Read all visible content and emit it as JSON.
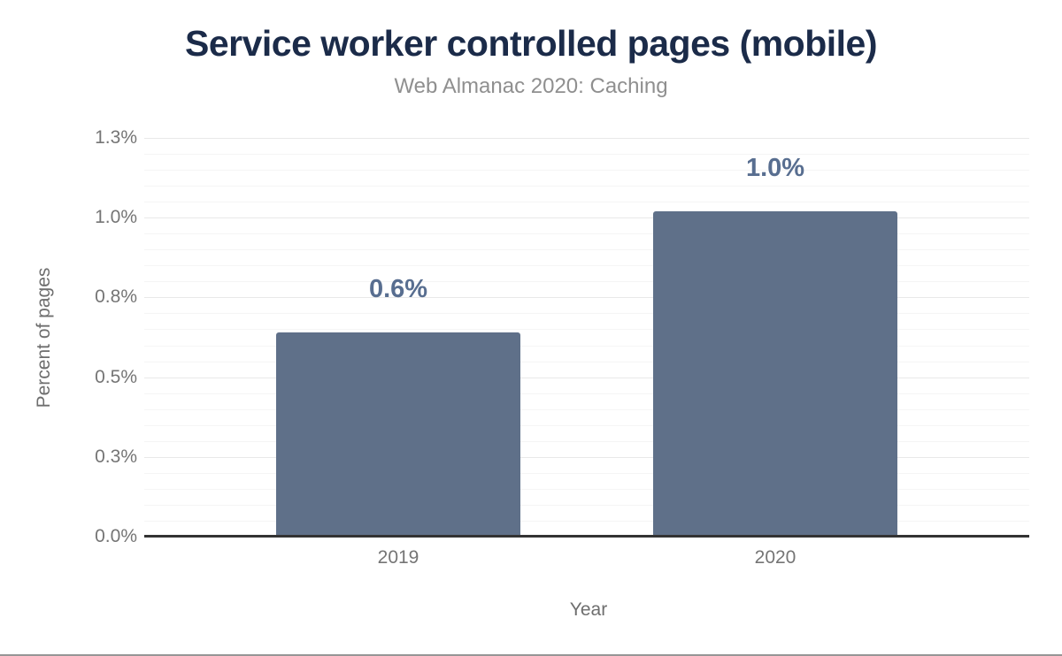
{
  "chart_data": {
    "type": "bar",
    "title": "Service worker controlled pages (mobile)",
    "subtitle": "Web Almanac 2020: Caching",
    "xlabel": "Year",
    "ylabel": "Percent of pages",
    "categories": [
      "2019",
      "2020"
    ],
    "values": [
      0.64,
      1.02
    ],
    "value_labels": [
      "0.6%",
      "1.0%"
    ],
    "ylim": [
      0,
      1.25
    ],
    "ytick_major_step": 0.25,
    "ytick_minor_step": 0.05,
    "yticks": [
      {
        "value": 0.0,
        "label": "0.0%"
      },
      {
        "value": 0.25,
        "label": "0.3%"
      },
      {
        "value": 0.5,
        "label": "0.5%"
      },
      {
        "value": 0.75,
        "label": "0.8%"
      },
      {
        "value": 1.0,
        "label": "1.0%"
      },
      {
        "value": 1.25,
        "label": "1.3%"
      }
    ],
    "grid": true,
    "legend": "none",
    "colors": {
      "bar": "#5f7089",
      "annotation": "#586e90",
      "title": "#1b2b49",
      "subtitle": "#8f8f8f",
      "tick_text": "#757575",
      "axis_title_text": "#6e6e6e",
      "grid_minor": "#f5f5f5",
      "grid_major": "#e9e9e9",
      "baseline": "#333333"
    }
  }
}
